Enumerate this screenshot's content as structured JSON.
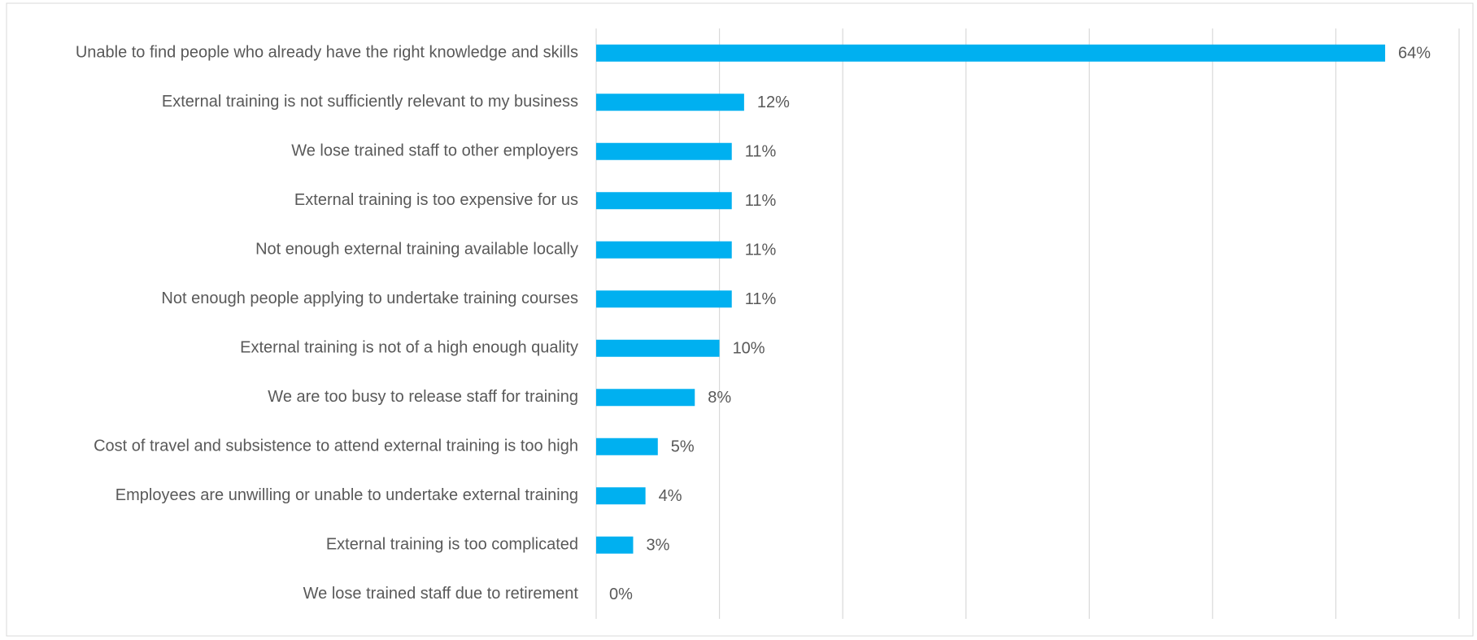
{
  "chart_data": {
    "type": "bar",
    "orientation": "horizontal",
    "categories": [
      "Unable to find people who already have the right knowledge and skills",
      "External training is not sufficiently relevant to my business",
      "We lose trained staff to other employers",
      "External training is too expensive for us",
      "Not enough external training available locally",
      "Not enough people applying to undertake training courses",
      "External training is not of a high enough quality",
      "We are too busy to release staff for training",
      "Cost of travel and subsistence to attend external training is too high",
      "Employees are unwilling or unable to undertake external training",
      "External training is too complicated",
      "We lose trained staff due to retirement"
    ],
    "values": [
      64,
      12,
      11,
      11,
      11,
      11,
      10,
      8,
      5,
      4,
      3,
      0
    ],
    "value_labels": [
      "64%",
      "12%",
      "11%",
      "11%",
      "11%",
      "11%",
      "10%",
      "8%",
      "5%",
      "4%",
      "3%",
      "0%"
    ],
    "color": "#00b0f0",
    "xlim": [
      0,
      70
    ],
    "xticks": [
      0,
      10,
      20,
      30,
      40,
      50,
      60,
      70
    ],
    "grid": true
  }
}
